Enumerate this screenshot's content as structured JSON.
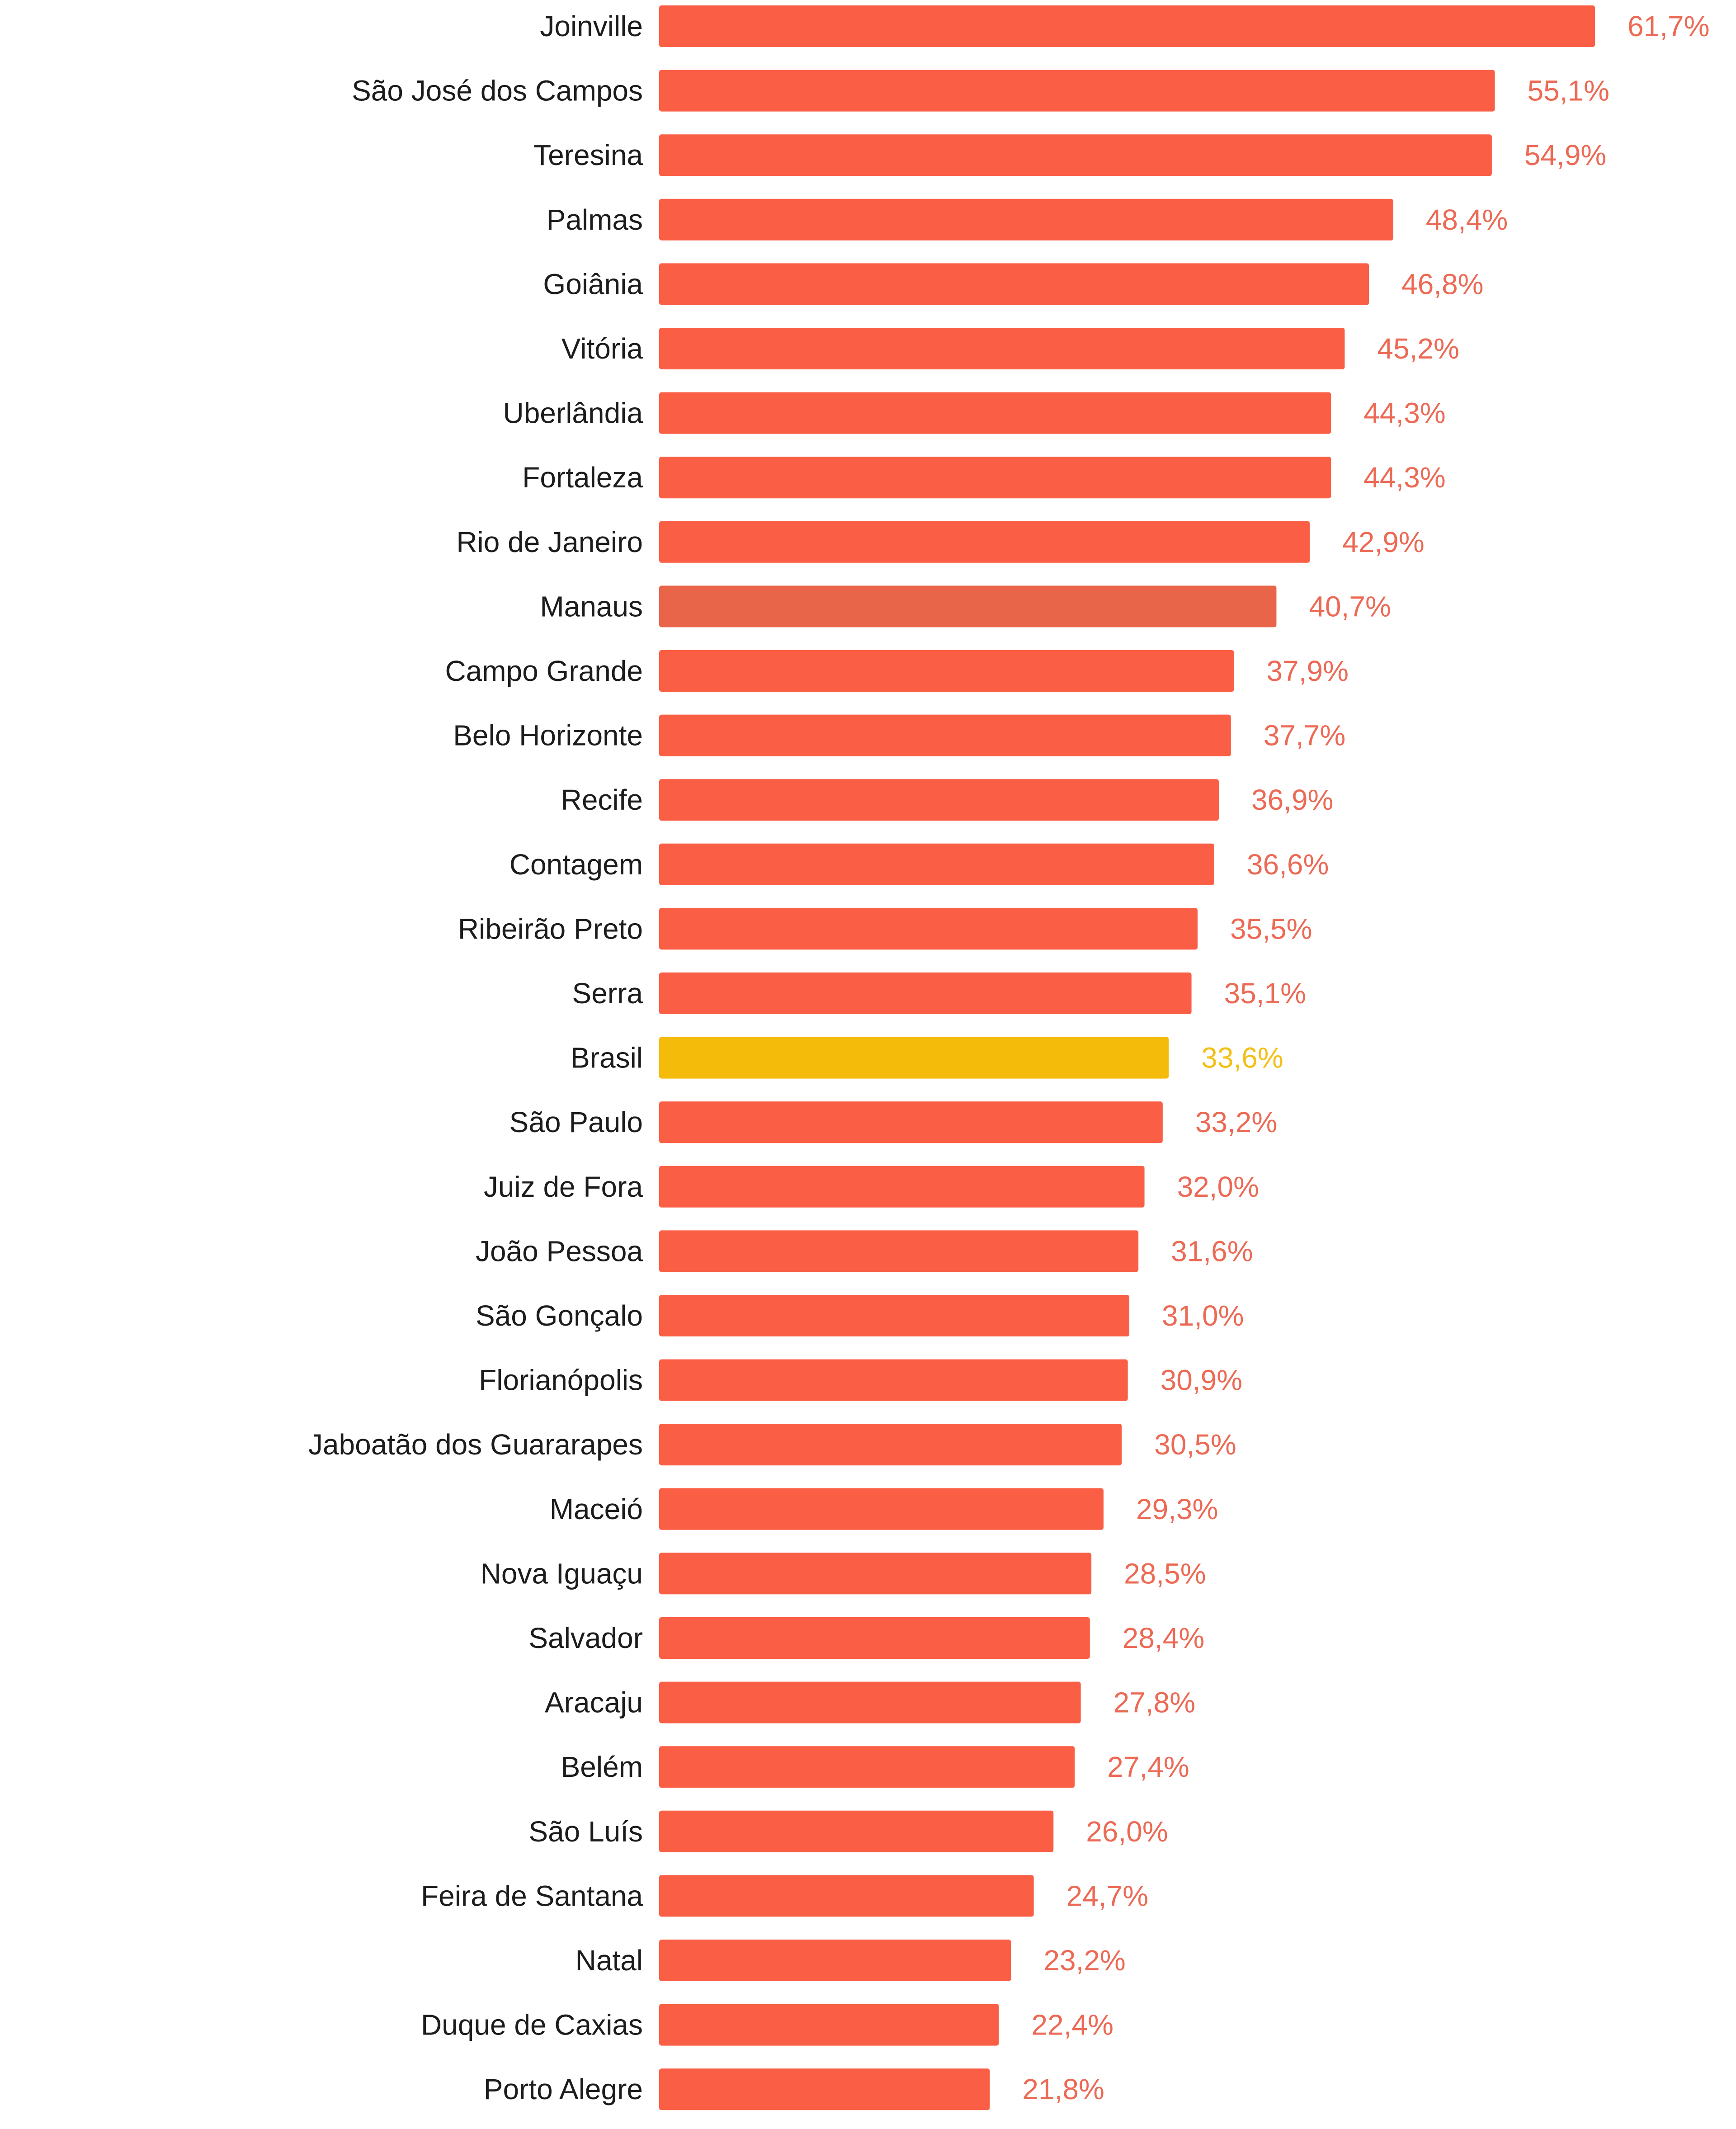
{
  "chart_data": {
    "type": "bar",
    "orientation": "horizontal",
    "categories": [
      "Joinville",
      "São José dos Campos",
      "Teresina",
      "Palmas",
      "Goiânia",
      "Vitória",
      "Uberlândia",
      "Fortaleza",
      "Rio de Janeiro",
      "Manaus",
      "Campo Grande",
      "Belo Horizonte",
      "Recife",
      "Contagem",
      "Ribeirão Preto",
      "Serra",
      "Brasil",
      "São Paulo",
      "Juiz de Fora",
      "João Pessoa",
      "São Gonçalo",
      "Florianópolis",
      "Jaboatão dos Guararapes",
      "Maceió",
      "Nova Iguaçu",
      "Salvador",
      "Aracaju",
      "Belém",
      "São Luís",
      "Feira de Santana",
      "Natal",
      "Duque de Caxias",
      "Porto Alegre"
    ],
    "values": [
      61.7,
      55.1,
      54.9,
      48.4,
      46.8,
      45.2,
      44.3,
      44.3,
      42.9,
      40.7,
      37.9,
      37.7,
      36.9,
      36.6,
      35.5,
      35.1,
      33.6,
      33.2,
      32.0,
      31.6,
      31.0,
      30.9,
      30.5,
      29.3,
      28.5,
      28.4,
      27.8,
      27.4,
      26.0,
      24.7,
      23.2,
      22.4,
      21.8
    ],
    "value_labels": [
      "61,7%",
      "55,1%",
      "54,9%",
      "48,4%",
      "46,8%",
      "45,2%",
      "44,3%",
      "44,3%",
      "42,9%",
      "40,7%",
      "37,9%",
      "37,7%",
      "36,9%",
      "36,6%",
      "35,5%",
      "35,1%",
      "33,6%",
      "33,2%",
      "32,0%",
      "31,6%",
      "31,0%",
      "30,9%",
      "30,5%",
      "29,3%",
      "28,5%",
      "28,4%",
      "27,8%",
      "27,4%",
      "26,0%",
      "24,7%",
      "23,2%",
      "22,4%",
      "21,8%"
    ],
    "colors": {
      "default_bar": "#fa5f46",
      "highlight_bar": "#e8654a",
      "brasil_bar": "#f5bb0a",
      "default_label": "#ec6a55",
      "brasil_label": "#f2c018",
      "category_text": "#1c1c1c"
    },
    "highlight_category": "Manaus",
    "reference_category": "Brasil",
    "title": "",
    "xlabel": "",
    "ylabel": "",
    "xlim": [
      0,
      61.7
    ],
    "grid": false,
    "legend": false
  }
}
